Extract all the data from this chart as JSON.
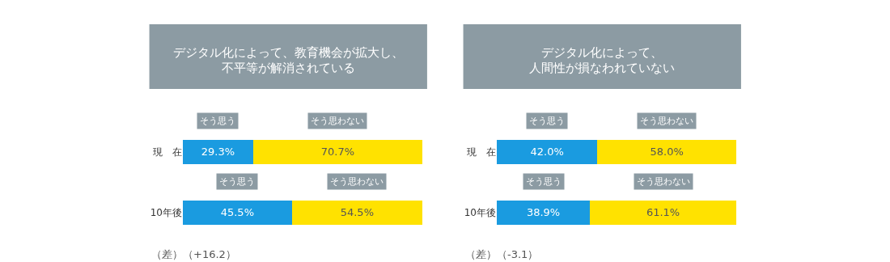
{
  "chart_data": [
    {
      "type": "bar",
      "orientation": "horizontal",
      "stacked": true,
      "title": "デジタル化によって、教育機会が拡大し、不平等が解消されている",
      "categories": [
        "現　在",
        "10年後"
      ],
      "xlim": [
        0,
        100
      ],
      "tick_labels": "y",
      "grid": false,
      "legend": false,
      "series": [
        {
          "name": "そう思う",
          "color": "#1a9be0",
          "values": [
            29.3,
            45.5
          ],
          "value_labels": [
            "29.3%",
            "45.5%"
          ]
        },
        {
          "name": "そう思わない",
          "color": "#ffe200",
          "values": [
            70.7,
            54.5
          ],
          "value_labels": [
            "70.7%",
            "54.5%"
          ]
        }
      ],
      "annotations": [
        "（差）（+16.2）"
      ]
    },
    {
      "type": "bar",
      "orientation": "horizontal",
      "stacked": true,
      "title": "デジタル化によって、人間性が損なわれていない",
      "categories": [
        "現　在",
        "10年後"
      ],
      "xlim": [
        0,
        100
      ],
      "tick_labels": "y",
      "grid": false,
      "legend": false,
      "series": [
        {
          "name": "そう思う",
          "color": "#1a9be0",
          "values": [
            42.0,
            38.9
          ],
          "value_labels": [
            "42.0%",
            "38.9%"
          ]
        },
        {
          "name": "そう思わない",
          "color": "#ffe200",
          "values": [
            58.0,
            61.1
          ],
          "value_labels": [
            "58.0%",
            "61.1%"
          ]
        }
      ],
      "annotations": [
        "（差）（-3.1）"
      ]
    }
  ]
}
